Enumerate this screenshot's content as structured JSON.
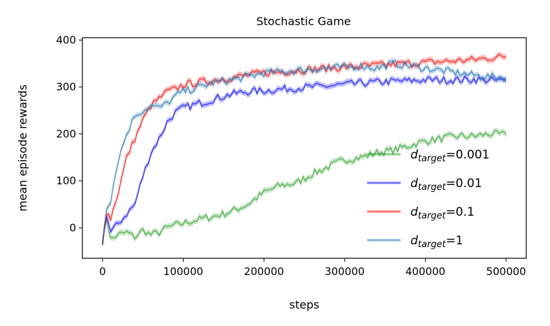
{
  "chart_data": {
    "type": "line",
    "title": "Stochastic Game",
    "xlabel": "steps",
    "ylabel": "mean episode rewards",
    "xlim": [
      -25000,
      525000
    ],
    "ylim": [
      -65,
      405
    ],
    "xticks": [
      0,
      100000,
      200000,
      300000,
      400000,
      500000
    ],
    "xtick_labels": [
      "0",
      "100000",
      "200000",
      "300000",
      "400000",
      "500000"
    ],
    "yticks": [
      0,
      100,
      200,
      300,
      400
    ],
    "ytick_labels": [
      "0",
      "100",
      "200",
      "300",
      "400"
    ],
    "grid": false,
    "legend_position": "lower-right",
    "series": [
      {
        "name": "d_target=0.001",
        "legend_main": "d",
        "legend_sub": "target",
        "legend_value": "=0.001",
        "color": "#2ca02c",
        "x": [
          0,
          5000,
          10000,
          20000,
          30000,
          40000,
          50000,
          60000,
          70000,
          80000,
          90000,
          100000,
          120000,
          140000,
          160000,
          180000,
          200000,
          220000,
          240000,
          260000,
          280000,
          300000,
          320000,
          340000,
          360000,
          380000,
          400000,
          420000,
          440000,
          460000,
          480000,
          500000
        ],
        "y": [
          -30,
          20,
          -25,
          -15,
          -10,
          -20,
          -5,
          -15,
          -10,
          0,
          5,
          10,
          18,
          25,
          35,
          50,
          75,
          90,
          95,
          115,
          130,
          145,
          150,
          160,
          165,
          175,
          185,
          190,
          195,
          195,
          200,
          198
        ]
      },
      {
        "name": "d_target=0.01",
        "legend_main": "d",
        "legend_sub": "target",
        "legend_value": "=0.01",
        "color": "#0000ff",
        "x": [
          0,
          5000,
          10000,
          20000,
          30000,
          40000,
          50000,
          60000,
          70000,
          80000,
          90000,
          100000,
          120000,
          140000,
          160000,
          180000,
          200000,
          220000,
          240000,
          260000,
          280000,
          300000,
          320000,
          340000,
          360000,
          380000,
          400000,
          420000,
          440000,
          460000,
          480000,
          500000
        ],
        "y": [
          -30,
          30,
          -10,
          10,
          30,
          50,
          110,
          160,
          190,
          225,
          245,
          255,
          265,
          275,
          285,
          290,
          292,
          295,
          298,
          300,
          302,
          305,
          308,
          310,
          312,
          313,
          315,
          315,
          315,
          316,
          314,
          313
        ]
      },
      {
        "name": "d_target=0.1",
        "legend_main": "d",
        "legend_sub": "target",
        "legend_value": "=0.1",
        "color": "#ff0000",
        "x": [
          0,
          5000,
          10000,
          20000,
          30000,
          40000,
          50000,
          60000,
          70000,
          80000,
          90000,
          100000,
          120000,
          140000,
          160000,
          180000,
          200000,
          220000,
          240000,
          260000,
          280000,
          300000,
          320000,
          340000,
          360000,
          380000,
          400000,
          420000,
          440000,
          460000,
          480000,
          500000
        ],
        "y": [
          -30,
          35,
          20,
          80,
          150,
          190,
          230,
          260,
          275,
          290,
          295,
          305,
          310,
          315,
          320,
          325,
          330,
          332,
          335,
          338,
          340,
          342,
          344,
          346,
          348,
          350,
          352,
          354,
          356,
          358,
          362,
          365
        ]
      },
      {
        "name": "d_target=1",
        "legend_main": "d",
        "legend_sub": "target",
        "legend_value": "=1",
        "color": "#1f77b4",
        "x": [
          0,
          5000,
          10000,
          20000,
          30000,
          40000,
          50000,
          60000,
          70000,
          80000,
          90000,
          100000,
          120000,
          140000,
          160000,
          180000,
          200000,
          220000,
          240000,
          260000,
          280000,
          300000,
          320000,
          340000,
          360000,
          380000,
          400000,
          420000,
          440000,
          460000,
          480000,
          500000
        ],
        "y": [
          -30,
          45,
          60,
          150,
          200,
          240,
          250,
          260,
          255,
          265,
          280,
          290,
          300,
          310,
          315,
          322,
          330,
          332,
          335,
          338,
          340,
          342,
          345,
          340,
          350,
          345,
          340,
          335,
          330,
          325,
          322,
          320
        ]
      }
    ]
  }
}
